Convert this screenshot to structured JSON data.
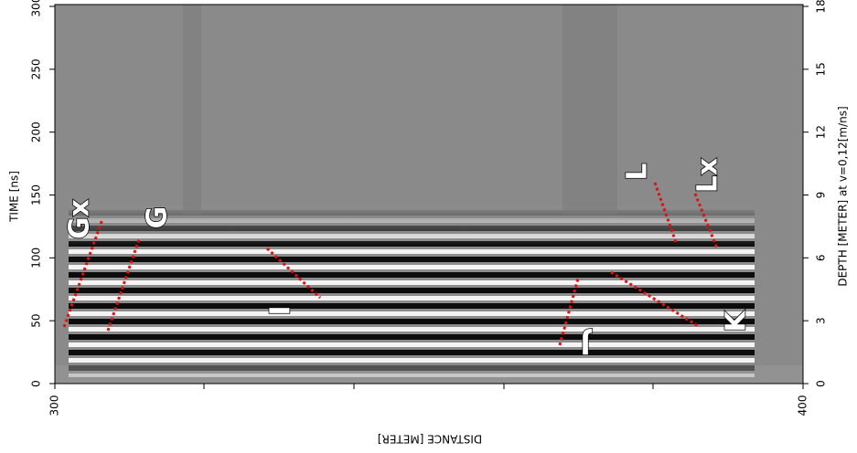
{
  "chart_data": {
    "type": "radargram",
    "y_label": "TIME [ns]",
    "y2_label": "DEPTH [METER] at v=0,12[m/ns]",
    "x_label": "DISTANCE [METER]",
    "xlim": [
      300,
      400
    ],
    "xticks": [
      300,
      400
    ],
    "ylim": [
      0,
      300
    ],
    "yticks": [
      0,
      50,
      100,
      150,
      200,
      250,
      300
    ],
    "y2lim": [
      0,
      18
    ],
    "y2ticks": [
      0,
      3,
      6,
      9,
      12,
      15,
      18
    ],
    "annotations": [
      "Gx",
      "G",
      "I",
      "J",
      "K",
      "L",
      "Lx"
    ]
  }
}
